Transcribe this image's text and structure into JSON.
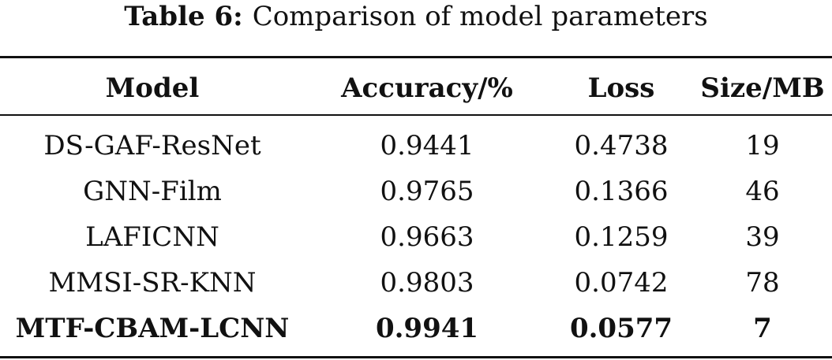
{
  "caption": {
    "label": "Table 6:",
    "text": "Comparison of model parameters"
  },
  "table": {
    "headers": [
      "Model",
      "Accuracy/%",
      "Loss",
      "Size/MB"
    ],
    "rows": [
      {
        "model": "DS-GAF-ResNet",
        "accuracy": "0.9441",
        "loss": "0.4738",
        "size": "19"
      },
      {
        "model": "GNN-Film",
        "accuracy": "0.9765",
        "loss": "0.1366",
        "size": "46"
      },
      {
        "model": "LAFICNN",
        "accuracy": "0.9663",
        "loss": "0.1259",
        "size": "39"
      },
      {
        "model": "MMSI-SR-KNN",
        "accuracy": "0.9803",
        "loss": "0.0742",
        "size": "78"
      },
      {
        "model": "MTF-CBAM-LCNN",
        "accuracy": "0.9941",
        "loss": "0.0577",
        "size": "7"
      }
    ]
  }
}
